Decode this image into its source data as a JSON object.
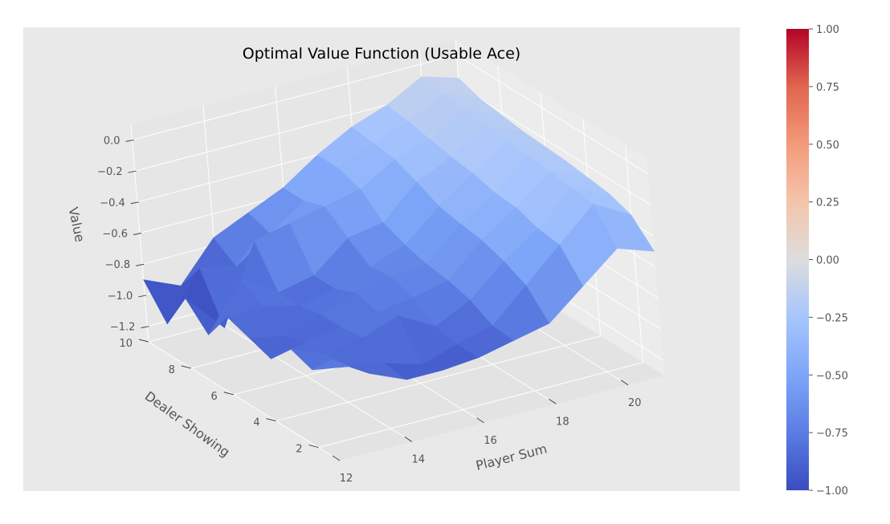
{
  "chart_data": {
    "type": "surface3d",
    "title": "Optimal Value Function (Usable Ace)",
    "xlabel": "Player Sum",
    "ylabel": "Dealer Showing",
    "zlabel": "Value",
    "x": [
      12,
      13,
      14,
      15,
      16,
      17,
      18,
      19,
      20,
      21
    ],
    "y": [
      1,
      2,
      3,
      4,
      5,
      6,
      7,
      8,
      9,
      10
    ],
    "x_ticks": [
      "12",
      "14",
      "16",
      "18",
      "20"
    ],
    "y_ticks": [
      "2",
      "4",
      "6",
      "8",
      "10"
    ],
    "z_ticks": [
      "0.0",
      "−0.2",
      "−0.4",
      "−0.6",
      "−0.8",
      "−1.0",
      "−1.2"
    ],
    "z_tick_values": [
      0.0,
      -0.2,
      -0.4,
      -0.6,
      -0.8,
      -1.0,
      -1.2
    ],
    "zlim": [
      -1.3,
      0.1
    ],
    "z": [
      [
        -0.65,
        -0.8,
        -0.9,
        -0.9,
        -0.88,
        -0.83,
        -0.78,
        -0.6,
        -0.42,
        -0.5
      ],
      [
        -0.8,
        -0.84,
        -0.88,
        -0.95,
        -0.88,
        -0.82,
        -0.62,
        -0.42,
        -0.22,
        -0.35
      ],
      [
        -0.75,
        -0.85,
        -0.8,
        -0.72,
        -0.85,
        -0.74,
        -0.55,
        -0.4,
        -0.2,
        -0.3
      ],
      [
        -0.9,
        -0.85,
        -0.82,
        -0.78,
        -0.75,
        -0.7,
        -0.5,
        -0.35,
        -0.18,
        -0.28
      ],
      [
        -0.85,
        -0.9,
        -0.82,
        -0.74,
        -0.7,
        -0.68,
        -0.48,
        -0.34,
        -0.16,
        -0.26
      ],
      [
        -0.8,
        -0.8,
        -0.85,
        -0.8,
        -0.72,
        -0.64,
        -0.45,
        -0.3,
        -0.15,
        -0.25
      ],
      [
        -1.0,
        -0.7,
        -0.85,
        -0.8,
        -0.62,
        -0.58,
        -0.38,
        -0.28,
        -0.14,
        -0.24
      ],
      [
        -0.85,
        -1.1,
        -0.6,
        -0.55,
        -0.5,
        -0.45,
        -0.32,
        -0.25,
        -0.12,
        -0.22
      ],
      [
        -1.1,
        -0.8,
        -0.85,
        -0.7,
        -0.55,
        -0.4,
        -0.3,
        -0.22,
        -0.1,
        -0.2
      ],
      [
        -0.9,
        -1.0,
        -0.75,
        -0.65,
        -0.55,
        -0.4,
        -0.28,
        -0.2,
        -0.08,
        -0.15
      ]
    ],
    "colorbar": {
      "range": [
        -1.0,
        1.0
      ],
      "ticks": [
        "1.00",
        "0.75",
        "0.50",
        "0.25",
        "0.00",
        "−0.25",
        "−0.50",
        "−0.75",
        "−1.00"
      ],
      "tick_values": [
        1.0,
        0.75,
        0.5,
        0.25,
        0.0,
        -0.25,
        -0.5,
        -0.75,
        -1.0
      ],
      "colormap": "coolwarm"
    },
    "grid": true
  }
}
